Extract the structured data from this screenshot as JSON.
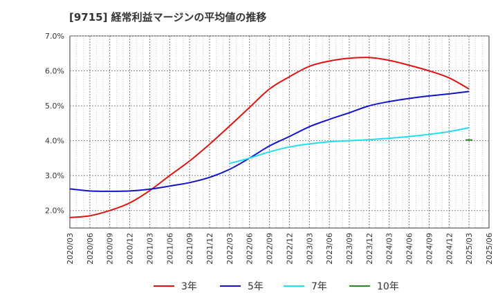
{
  "chart_data": {
    "type": "line",
    "title": "[9715]  経常利益マージンの平均値の推移",
    "xlabel": "",
    "ylabel": "",
    "x_ticks": [
      "2020/03",
      "2020/06",
      "2020/09",
      "2020/12",
      "2021/03",
      "2021/06",
      "2021/09",
      "2021/12",
      "2022/03",
      "2022/06",
      "2022/09",
      "2022/12",
      "2023/03",
      "2023/06",
      "2023/09",
      "2023/12",
      "2024/03",
      "2024/06",
      "2024/09",
      "2024/12",
      "2025/03",
      "2025/06"
    ],
    "y_ticks": [
      "2.0%",
      "3.0%",
      "4.0%",
      "5.0%",
      "6.0%",
      "7.0%"
    ],
    "ylim": [
      1.5,
      7.0
    ],
    "grid": true,
    "legend_position": "bottom",
    "series": [
      {
        "name": "3年",
        "color": "#dd1111",
        "start_index": 0,
        "values": [
          1.8,
          1.85,
          2.0,
          2.22,
          2.57,
          3.0,
          3.42,
          3.9,
          4.42,
          4.95,
          5.48,
          5.83,
          6.13,
          6.28,
          6.36,
          6.38,
          6.3,
          6.16,
          6.0,
          5.8,
          5.48
        ]
      },
      {
        "name": "5年",
        "color": "#1111cc",
        "start_index": 0,
        "values": [
          2.62,
          2.56,
          2.55,
          2.56,
          2.61,
          2.7,
          2.8,
          2.95,
          3.18,
          3.5,
          3.85,
          4.12,
          4.4,
          4.61,
          4.8,
          5.0,
          5.12,
          5.21,
          5.28,
          5.34,
          5.41
        ]
      },
      {
        "name": "7年",
        "color": "#22ddee",
        "start_index": 8,
        "values": [
          3.35,
          3.5,
          3.68,
          3.82,
          3.91,
          3.97,
          4.0,
          4.03,
          4.07,
          4.12,
          4.18,
          4.26,
          4.37
        ]
      },
      {
        "name": "10年",
        "color": "#228822",
        "start_index": 20,
        "values": [
          4.02
        ]
      }
    ]
  }
}
